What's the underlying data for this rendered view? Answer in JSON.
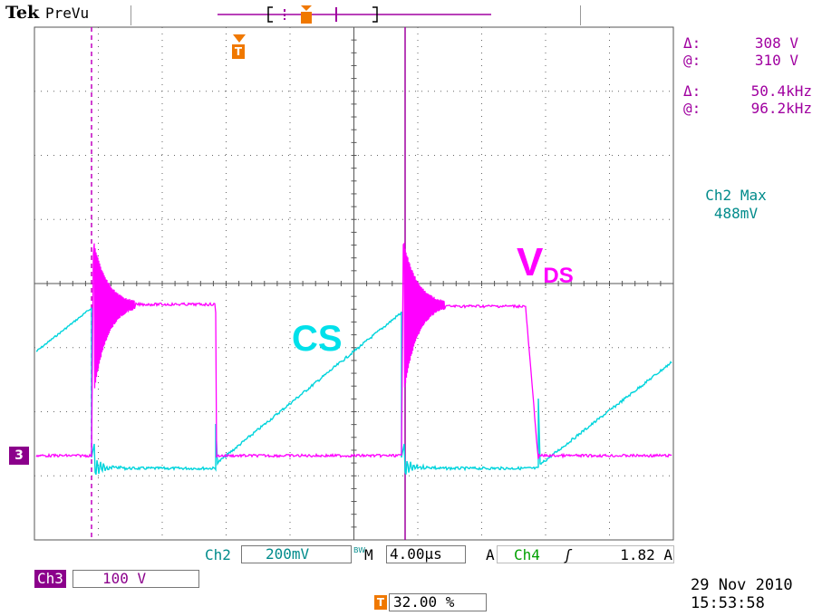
{
  "header": {
    "brand": "Tek",
    "mode": "PreVu"
  },
  "measurements": {
    "voltage_delta_symbol": "Δ:",
    "voltage_delta": "308 V",
    "voltage_at_symbol": "@:",
    "voltage_at": "310 V",
    "freq_delta_symbol": "Δ:",
    "freq_delta": "50.4kHz",
    "freq_at_symbol": "@:",
    "freq_at": "96.2kHz",
    "ch2_max_label": "Ch2 Max",
    "ch2_max_value": "488mV"
  },
  "waveform_labels": {
    "cs": "CS",
    "vds_main": "V",
    "vds_sub": "DS"
  },
  "markers": {
    "trigger_glyph": "T",
    "ch3_ground": "3"
  },
  "bottom_bar": {
    "ch2_label": "Ch2",
    "ch2_scale": "200mV",
    "bw_label": "BW",
    "timebase_prefix": "M",
    "timebase": "4.00µs",
    "trigger_type": "A",
    "trigger_source": "Ch4",
    "trigger_slope": "ʃ",
    "trigger_level": "1.82 A",
    "ch3_label": "Ch3",
    "ch3_scale": "100 V",
    "trigger_position": "32.00 %",
    "date": "29 Nov 2010",
    "time": "15:53:58"
  },
  "colors": {
    "ch2": "#00d4dc",
    "ch3": "#e600e6",
    "cursor": "#a000a0",
    "trigger": "#f07800",
    "ch2_text": "#008b8b"
  }
}
